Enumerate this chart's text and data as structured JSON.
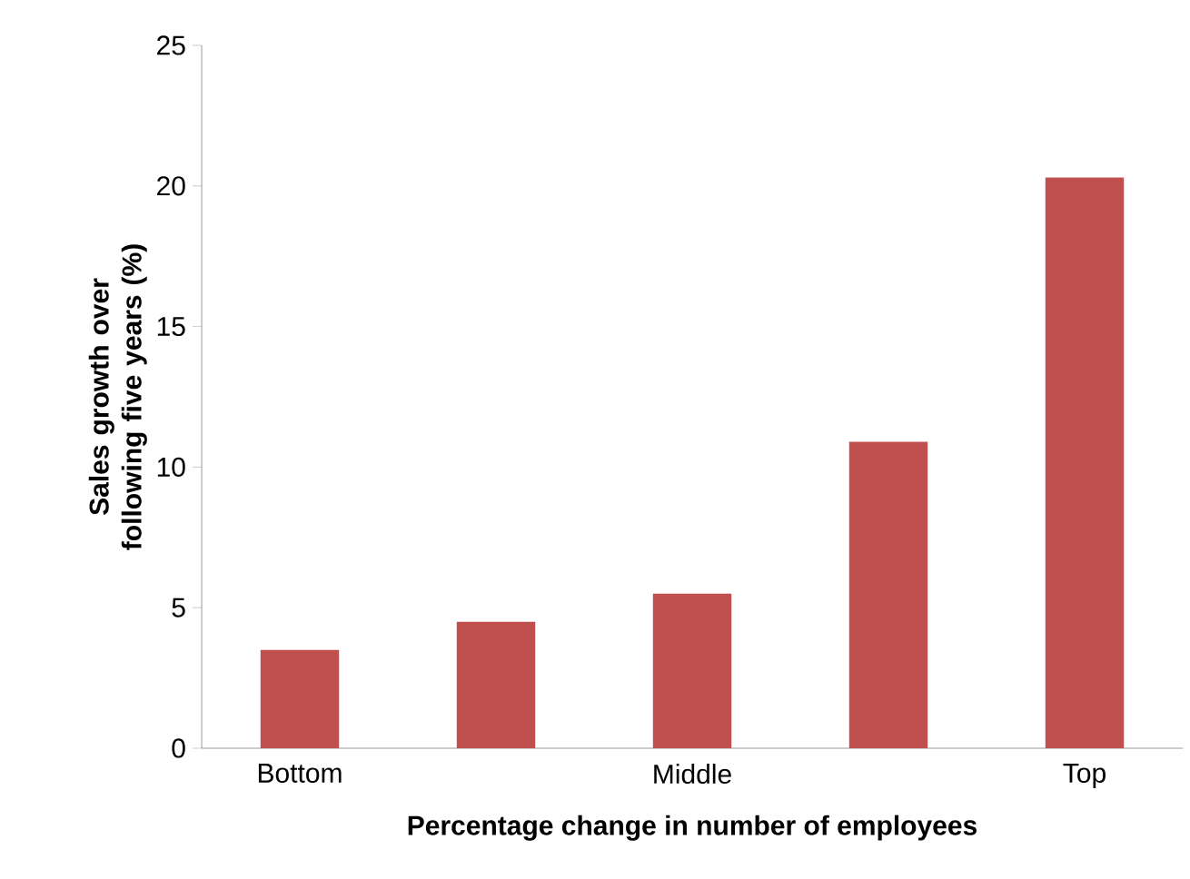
{
  "chart_data": {
    "type": "bar",
    "xlabel": "Percentage change in number of employees",
    "ylabel": "Sales growth over following five years (%)",
    "categories": [
      "Bottom",
      null,
      "Middle",
      null,
      "Top"
    ],
    "values": [
      3.5,
      4.5,
      5.5,
      10.9,
      20.3
    ],
    "color": "#c0504d",
    "ylim": [
      0,
      25
    ],
    "yticks": [
      0,
      5,
      10,
      15,
      20,
      25
    ]
  }
}
